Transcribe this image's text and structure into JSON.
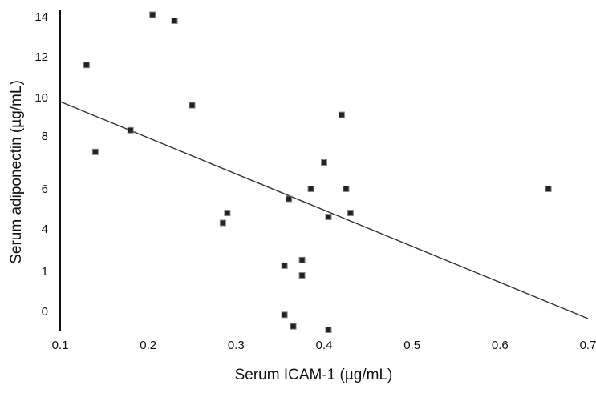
{
  "chart_data": {
    "type": "scatter",
    "xlabel": "Serum ICAM-1 (µg/mL)",
    "ylabel": "Serum adiponectin (µg/mL)",
    "xlim": [
      0.1,
      0.7
    ],
    "x_ticks": [
      0.1,
      0.2,
      0.3,
      0.4,
      0.5,
      0.6,
      0.7
    ],
    "x_tick_labels": [
      "0.1",
      "0.2",
      "0.3",
      "0.4",
      "0.5",
      "0.6",
      "0.7"
    ],
    "y_tick_labels": [
      "14",
      "12",
      "10",
      "8",
      "6",
      "4",
      "1",
      "0"
    ],
    "y_tick_values": [
      14,
      12,
      10,
      8,
      6,
      4,
      1,
      0
    ],
    "grid": false,
    "legend": "none",
    "points": [
      {
        "x": 0.13,
        "y": 11.6
      },
      {
        "x": 0.14,
        "y": 7.4
      },
      {
        "x": 0.18,
        "y": 8.3
      },
      {
        "x": 0.205,
        "y": 14.1
      },
      {
        "x": 0.23,
        "y": 13.8
      },
      {
        "x": 0.25,
        "y": 9.6
      },
      {
        "x": 0.285,
        "y": 4.3
      },
      {
        "x": 0.29,
        "y": 4.8
      },
      {
        "x": 0.355,
        "y": 1.4
      },
      {
        "x": 0.355,
        "y": -0.3
      },
      {
        "x": 0.36,
        "y": 5.5
      },
      {
        "x": 0.365,
        "y": -1.3
      },
      {
        "x": 0.375,
        "y": 0.9
      },
      {
        "x": 0.375,
        "y": 1.8
      },
      {
        "x": 0.385,
        "y": 6.0
      },
      {
        "x": 0.4,
        "y": 7.0
      },
      {
        "x": 0.405,
        "y": 4.6
      },
      {
        "x": 0.405,
        "y": -1.6
      },
      {
        "x": 0.42,
        "y": 9.1
      },
      {
        "x": 0.425,
        "y": 6.0
      },
      {
        "x": 0.43,
        "y": 4.8
      },
      {
        "x": 0.655,
        "y": 6.0
      }
    ],
    "trend_line": {
      "x": [
        0.1,
        0.7
      ],
      "y": [
        9.8,
        -0.8
      ]
    }
  }
}
